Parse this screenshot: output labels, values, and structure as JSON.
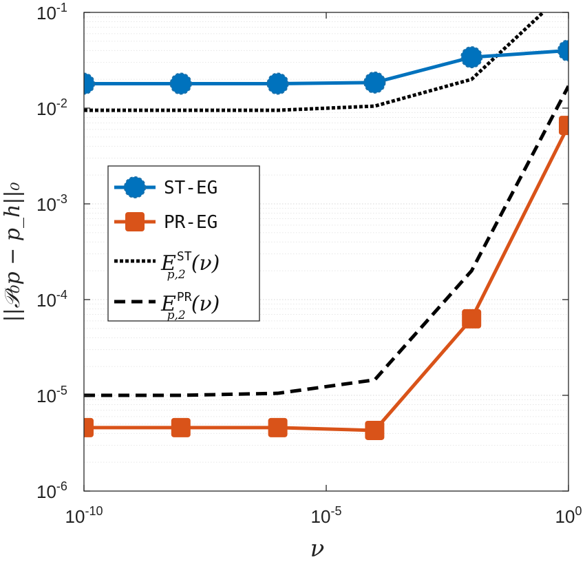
{
  "chart_data": {
    "type": "line",
    "title": "",
    "xlabel": "ν",
    "ylabel": "||𝒫₀p − p_h||₀",
    "xscale": "log",
    "yscale": "log",
    "xlim": [
      1e-10,
      1
    ],
    "ylim": [
      1e-06,
      0.1
    ],
    "grid": "minor-y",
    "legend_position": "middle-left",
    "x": [
      1e-10,
      1e-08,
      1e-06,
      0.0001,
      0.01,
      1
    ],
    "series": [
      {
        "name": "ST-EG",
        "style": "solid",
        "marker": "circle",
        "color": "#0072BD",
        "x": [
          1e-10,
          1e-08,
          1e-06,
          0.0001,
          0.01,
          1
        ],
        "values": [
          0.018,
          0.018,
          0.018,
          0.0185,
          0.034,
          0.04
        ]
      },
      {
        "name": "PR-EG",
        "style": "solid",
        "marker": "square",
        "color": "#D95319",
        "x": [
          1e-10,
          1e-08,
          1e-06,
          0.0001,
          0.01,
          1
        ],
        "values": [
          4.6e-06,
          4.6e-06,
          4.6e-06,
          4.3e-06,
          6.3e-05,
          0.0066
        ]
      },
      {
        "name": "E_{p,2}^{ST}(ν)",
        "style": "dotted",
        "marker": "none",
        "color": "#000000",
        "x": [
          1e-10,
          1e-08,
          1e-06,
          0.0001,
          0.01,
          0.3
        ],
        "values": [
          0.0095,
          0.0095,
          0.0095,
          0.0105,
          0.02,
          0.1
        ]
      },
      {
        "name": "E_{p,2}^{PR}(ν)",
        "style": "dashed",
        "marker": "none",
        "color": "#000000",
        "x": [
          1e-10,
          1e-08,
          1e-06,
          0.0001,
          0.01,
          1
        ],
        "values": [
          1e-05,
          1e-05,
          1.05e-05,
          1.45e-05,
          0.0002,
          0.017
        ]
      }
    ],
    "x_ticks": [
      {
        "value": 1e-10,
        "base": "10",
        "exp": "-10"
      },
      {
        "value": 1e-05,
        "base": "10",
        "exp": "-5"
      },
      {
        "value": 1,
        "base": "10",
        "exp": "0"
      }
    ],
    "y_ticks": [
      {
        "value": 1e-06,
        "base": "10",
        "exp": "-6"
      },
      {
        "value": 1e-05,
        "base": "10",
        "exp": "-5"
      },
      {
        "value": 0.0001,
        "base": "10",
        "exp": "-4"
      },
      {
        "value": 0.001,
        "base": "10",
        "exp": "-3"
      },
      {
        "value": 0.01,
        "base": "10",
        "exp": "-2"
      },
      {
        "value": 0.1,
        "base": "10",
        "exp": "-1"
      }
    ]
  },
  "legend": {
    "st_eg": "ST-EG",
    "pr_eg": "PR-EG",
    "e_st": {
      "main": "E",
      "sup": "ST",
      "sub": "p,2",
      "arg": "(ν)"
    },
    "e_pr": {
      "main": "E",
      "sup": "PR",
      "sub": "p,2",
      "arg": "(ν)"
    }
  },
  "axes": {
    "xlabel": "ν",
    "ylabel": "||𝒫₀p − p_h||₀"
  }
}
